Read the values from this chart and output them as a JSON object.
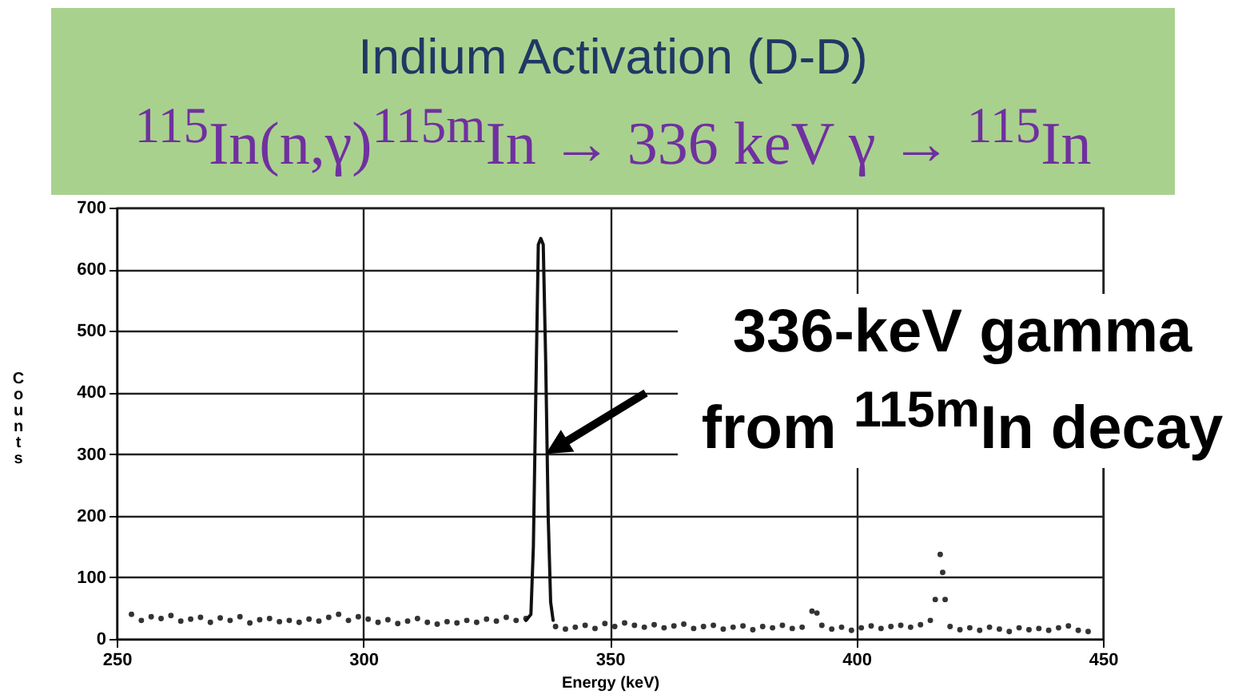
{
  "chart_data": {
    "type": "scatter",
    "title": "Indium Activation (D-D)",
    "subtitle": "$^{115}$In(n,γ)$^{115m}$In → 336 keV γ → $^{115}$In",
    "xlabel": "Energy (keV)",
    "ylabel": "Counts",
    "annotations": [
      {
        "text": "336-keV gamma from $^{115m}$In decay",
        "x": 337,
        "y": 300
      }
    ],
    "xlim": [
      250,
      450
    ],
    "xticks": [
      250,
      300,
      350,
      400,
      450
    ],
    "ylim": [
      0,
      700
    ],
    "yticks": [
      0,
      100,
      200,
      300,
      400,
      500,
      600,
      700
    ],
    "grid": true,
    "marker": "circle",
    "series": [
      {
        "color": "#333333",
        "x": [
          253,
          255,
          257,
          259,
          261,
          263,
          265,
          267,
          269,
          271,
          273,
          275,
          277,
          279,
          281,
          283,
          285,
          287,
          289,
          291,
          293,
          295,
          297,
          299,
          301,
          303,
          305,
          307,
          309,
          311,
          313,
          315,
          317,
          319,
          321,
          323,
          325,
          327,
          329,
          331,
          333,
          339,
          341,
          343,
          345,
          347,
          349,
          351,
          353,
          355,
          357,
          359,
          361,
          363,
          365,
          367,
          369,
          371,
          373,
          375,
          377,
          379,
          381,
          383,
          385,
          387,
          389,
          391,
          392,
          393,
          395,
          397,
          399,
          401,
          403,
          405,
          407,
          409,
          411,
          413,
          415,
          416,
          417,
          417.5,
          418,
          419,
          421,
          423,
          425,
          427,
          429,
          431,
          433,
          435,
          437,
          439,
          441,
          443,
          445,
          447
        ],
        "values": [
          40,
          30,
          36,
          33,
          38,
          29,
          32,
          35,
          27,
          34,
          30,
          36,
          26,
          31,
          33,
          28,
          30,
          27,
          32,
          29,
          35,
          40,
          30,
          36,
          32,
          27,
          31,
          25,
          29,
          33,
          27,
          24,
          28,
          26,
          30,
          27,
          32,
          29,
          35,
          30,
          33,
          20,
          16,
          19,
          22,
          17,
          25,
          20,
          26,
          22,
          19,
          23,
          18,
          21,
          24,
          17,
          20,
          22,
          16,
          19,
          21,
          15,
          20,
          18,
          22,
          17,
          19,
          45,
          42,
          22,
          16,
          19,
          14,
          18,
          21,
          17,
          20,
          22,
          19,
          23,
          30,
          64,
          137,
          108,
          64,
          20,
          15,
          18,
          14,
          19,
          16,
          12,
          18,
          15,
          17,
          14,
          18,
          21,
          14,
          12
        ]
      },
      {
        "type": "line",
        "marker": "none",
        "color": "#111111",
        "x": [
          333,
          334,
          334.5,
          335,
          335.5,
          336,
          336.5,
          337,
          337.5,
          338,
          338.5
        ],
        "values": [
          30,
          40,
          150,
          400,
          640,
          650,
          640,
          450,
          200,
          60,
          30
        ]
      }
    ]
  }
}
